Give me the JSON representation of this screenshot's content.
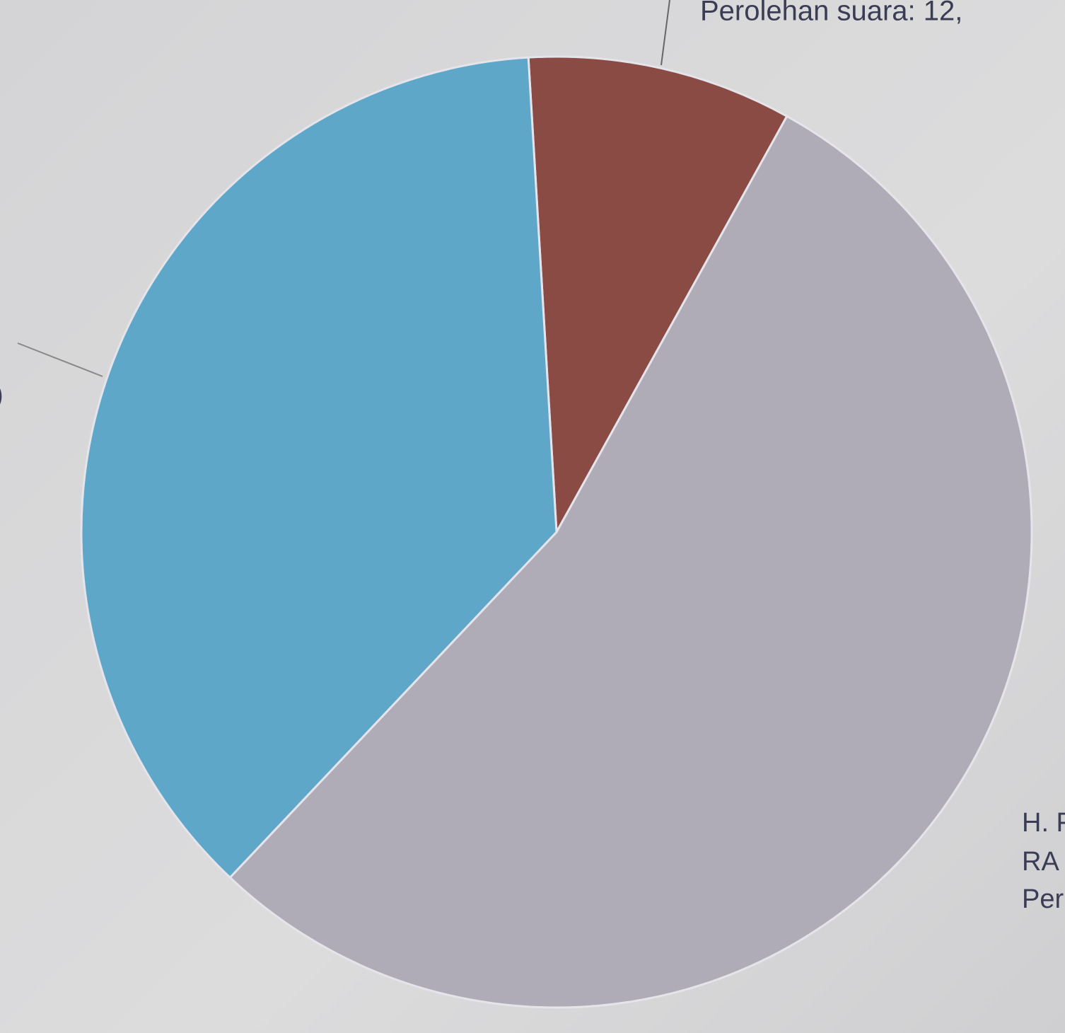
{
  "chart_data": {
    "type": "pie",
    "categories": [
      null,
      null,
      null
    ],
    "values": [
      9,
      54,
      37
    ],
    "colors": [
      "#8b4b45",
      "#afabb7",
      "#5fa7c9"
    ],
    "annotations": [
      "Perolehan suara: 12,",
      "H. F",
      "RA",
      "Per",
      ")"
    ]
  }
}
